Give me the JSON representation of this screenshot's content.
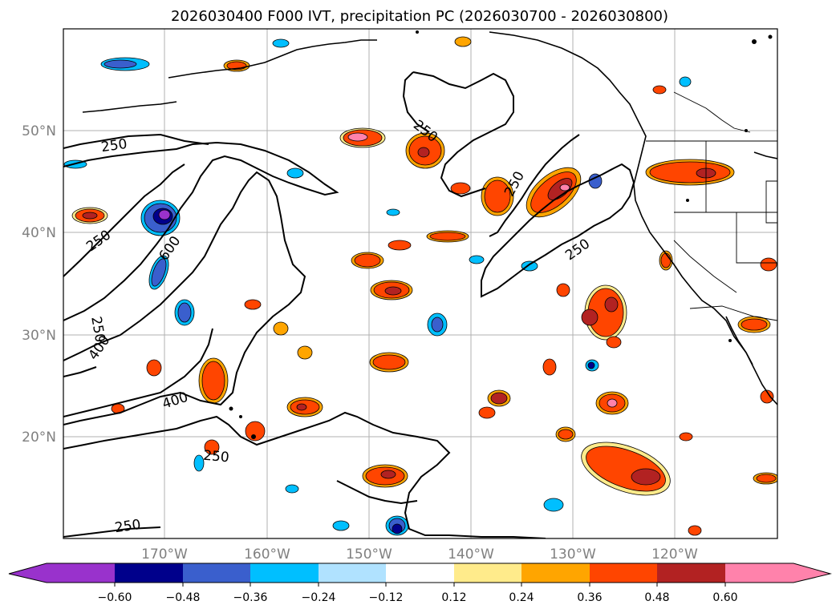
{
  "title": "2026030400 F000 IVT, precipitation PC (2026030700 - 2026030800)",
  "map": {
    "lat_labels": [
      "50°N",
      "40°N",
      "30°N",
      "20°N"
    ],
    "lon_labels": [
      "170°W",
      "160°W",
      "150°W",
      "140°W",
      "130°W",
      "120°W"
    ],
    "contour_labels": [
      "250",
      "250",
      "250",
      "250",
      "250",
      "250",
      "600",
      "400",
      "400",
      "250",
      "250",
      "250"
    ]
  },
  "colorbar": {
    "ticks": [
      "−0.60",
      "−0.48",
      "−0.36",
      "−0.24",
      "−0.12",
      "0.12",
      "0.24",
      "0.36",
      "0.48",
      "0.60"
    ],
    "colors": [
      "#9932cc",
      "#00008b",
      "#3a5fcd",
      "#00bfff",
      "#b0e2ff",
      "#ffffff",
      "#ffeb8b",
      "#ffa500",
      "#ff4500",
      "#b22222",
      "#ff82ab"
    ]
  }
}
